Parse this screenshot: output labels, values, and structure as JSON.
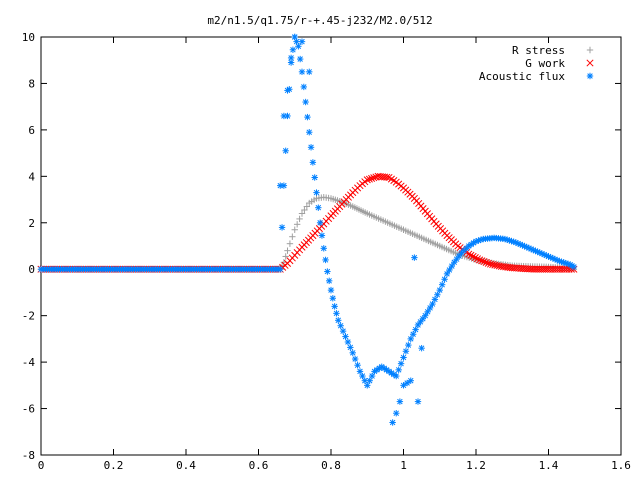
{
  "chart_data": {
    "type": "scatter",
    "title": "m2/n1.5/q1.75/r-+.45-j232/M2.0/512",
    "xlabel": "",
    "ylabel": "",
    "xlim": [
      0,
      1.6
    ],
    "ylim": [
      -8,
      10
    ],
    "x_ticks": [
      "0",
      "0.2",
      "0.4",
      "0.6",
      "0.8",
      "1",
      "1.2",
      "1.4",
      "1.6"
    ],
    "y_ticks": [
      "10",
      "8",
      "6",
      "4",
      "2",
      "0",
      "-2",
      "-4",
      "-6",
      "-8"
    ],
    "grid": false,
    "legend_position": "top-right",
    "series": [
      {
        "name": "R stress",
        "marker": "+",
        "color": "#a0a0a0",
        "x": [
          0.0,
          0.66,
          0.67,
          0.68,
          0.7,
          0.72,
          0.74,
          0.76,
          0.78,
          0.8,
          0.83,
          0.86,
          0.9,
          0.95,
          1.0,
          1.05,
          1.1,
          1.15,
          1.2,
          1.25,
          1.3,
          1.35,
          1.4,
          1.45,
          1.47
        ],
        "y": [
          0.0,
          0.0,
          0.3,
          0.8,
          1.7,
          2.4,
          2.85,
          3.05,
          3.1,
          3.05,
          2.9,
          2.7,
          2.4,
          2.05,
          1.7,
          1.35,
          1.0,
          0.65,
          0.4,
          0.25,
          0.15,
          0.12,
          0.1,
          0.05,
          0.0
        ]
      },
      {
        "name": "G work",
        "marker": "x",
        "color": "#ff0000",
        "x": [
          0.0,
          0.66,
          0.68,
          0.7,
          0.72,
          0.75,
          0.78,
          0.8,
          0.83,
          0.86,
          0.88,
          0.9,
          0.93,
          0.96,
          0.98,
          1.0,
          1.03,
          1.06,
          1.09,
          1.12,
          1.15,
          1.18,
          1.21,
          1.24,
          1.27,
          1.3,
          1.33,
          1.36,
          1.4,
          1.45,
          1.47
        ],
        "y": [
          0.0,
          0.0,
          0.25,
          0.6,
          0.95,
          1.45,
          1.95,
          2.3,
          2.8,
          3.3,
          3.6,
          3.85,
          4.0,
          3.95,
          3.75,
          3.5,
          3.05,
          2.5,
          1.95,
          1.45,
          1.0,
          0.65,
          0.4,
          0.22,
          0.12,
          0.06,
          0.03,
          0.0,
          0.0,
          0.0,
          0.0
        ]
      },
      {
        "name": "Acoustic flux",
        "marker": "*",
        "color": "#0080ff",
        "x": [
          0.0,
          0.66,
          0.67,
          0.68,
          0.69,
          0.7,
          0.71,
          0.72,
          0.73,
          0.74,
          0.75,
          0.76,
          0.77,
          0.78,
          0.79,
          0.8,
          0.81,
          0.82,
          0.84,
          0.86,
          0.88,
          0.9,
          0.92,
          0.94,
          0.96,
          0.98,
          1.0,
          1.02,
          1.04,
          1.06,
          1.08,
          1.1,
          1.12,
          1.14,
          1.16,
          1.18,
          1.2,
          1.22,
          1.25,
          1.28,
          1.31,
          1.34,
          1.37,
          1.4,
          1.43,
          1.46,
          1.47
        ],
        "y": [
          0.0,
          0.0,
          3.6,
          6.6,
          8.9,
          10.0,
          9.6,
          8.5,
          7.2,
          5.9,
          4.6,
          3.3,
          2.0,
          0.9,
          -0.1,
          -0.9,
          -1.6,
          -2.2,
          -2.9,
          -3.6,
          -4.4,
          -5.0,
          -4.4,
          -4.2,
          -4.4,
          -4.6,
          -3.8,
          -3.0,
          -2.4,
          -2.0,
          -1.5,
          -0.9,
          -0.2,
          0.3,
          0.7,
          1.0,
          1.2,
          1.3,
          1.35,
          1.3,
          1.15,
          0.95,
          0.75,
          0.55,
          0.35,
          0.2,
          0.1
        ]
      },
      {
        "name": "",
        "marker": "*",
        "color": "#0080ff",
        "x": [
          0.66,
          0.67,
          0.68,
          0.69,
          0.7,
          0.72,
          0.74,
          0.97,
          0.98,
          0.99,
          1.0,
          1.01,
          1.02,
          1.03,
          1.04,
          1.05
        ],
        "y": [
          3.6,
          6.6,
          7.7,
          9.1,
          10.0,
          9.8,
          8.5,
          -6.6,
          -6.2,
          -5.7,
          -5.0,
          -4.9,
          -4.8,
          0.5,
          -5.7,
          -3.4
        ]
      }
    ]
  }
}
